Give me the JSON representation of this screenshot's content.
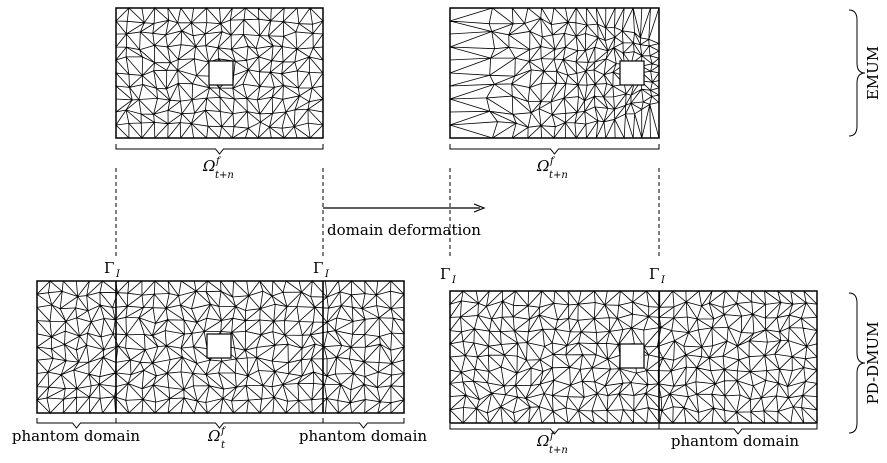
{
  "labels": {
    "domain_deformation": "domain deformation",
    "phantom_domain": "phantom domain",
    "gamma": "Γ",
    "gamma_sub": "I",
    "omega": "Ω",
    "omega_sup": "f",
    "omega_sub_tn": "t+n",
    "omega_sub_t": "t",
    "emum": "EMUM",
    "pd_dmum": "PD-DMUM"
  },
  "colors": {
    "mesh_stroke": "#000000",
    "background": "#ffffff",
    "hole_fill": "#ffffff"
  }
}
